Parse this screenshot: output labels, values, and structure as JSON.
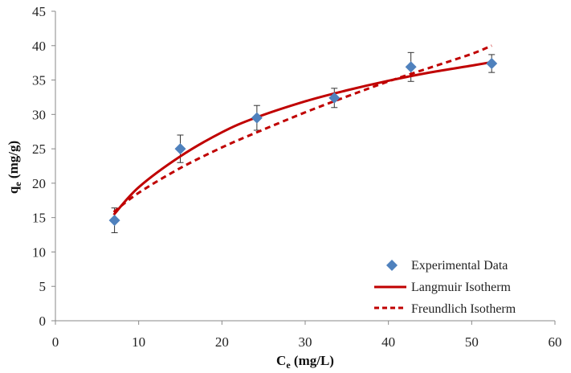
{
  "chart_data": {
    "type": "scatter",
    "xlabel": {
      "main": "C",
      "sub": "e",
      "rest": " (mg/L)"
    },
    "ylabel": {
      "main": "q",
      "sub": "e",
      "rest": " (mg/g)"
    },
    "xlim": [
      0,
      60
    ],
    "ylim": [
      0,
      45
    ],
    "xticks": [
      0,
      10,
      20,
      30,
      40,
      50,
      60
    ],
    "yticks": [
      0,
      5,
      10,
      15,
      20,
      25,
      30,
      35,
      40,
      45
    ],
    "grid": false,
    "legend_position": "bottom-right",
    "series": [
      {
        "name": "Experimental Data",
        "kind": "points",
        "color": "#4F81BD",
        "x": [
          7.1,
          15.0,
          24.2,
          33.5,
          42.7,
          52.4
        ],
        "y": [
          14.6,
          25.0,
          29.5,
          32.4,
          36.9,
          37.4
        ],
        "error": [
          1.8,
          2.0,
          1.8,
          1.4,
          2.1,
          1.3
        ]
      },
      {
        "name": "Langmuir Isotherm",
        "kind": "line",
        "color": "#C00000",
        "dash": "solid",
        "x": [
          7,
          10,
          15,
          20,
          24,
          30,
          35,
          40,
          45,
          50,
          52.4
        ],
        "y": [
          15.4,
          19.4,
          23.9,
          27.4,
          29.5,
          31.9,
          33.5,
          34.9,
          36.1,
          37.1,
          37.6
        ]
      },
      {
        "name": "Freundlich Isotherm",
        "kind": "line",
        "color": "#C00000",
        "dash": "dashed",
        "x": [
          7,
          10,
          15,
          20,
          24,
          30,
          35,
          40,
          45,
          50,
          52.4
        ],
        "y": [
          15.8,
          18.6,
          22.2,
          25.2,
          27.3,
          30.3,
          32.6,
          34.8,
          36.8,
          38.8,
          40.0
        ]
      }
    ]
  }
}
